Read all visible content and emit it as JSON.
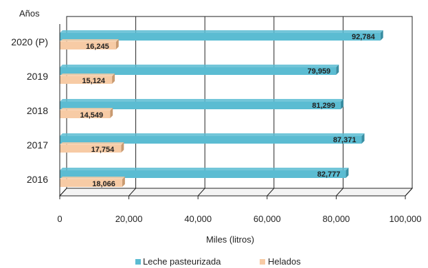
{
  "chart_data": {
    "type": "bar",
    "orientation": "horizontal",
    "categories": [
      "2020 (P)",
      "2019",
      "2018",
      "2017",
      "2016"
    ],
    "series": [
      {
        "name": "Leche pasteurizada",
        "values": [
          92784,
          79959,
          81299,
          87371,
          82777
        ],
        "labels": [
          "92,784",
          "79,959",
          "81,299",
          "87,371",
          "82,777"
        ],
        "color": "#5bbcd2"
      },
      {
        "name": "Helados",
        "values": [
          16245,
          15124,
          14549,
          17754,
          18066
        ],
        "labels": [
          "16,245",
          "15,124",
          "14,549",
          "17,754",
          "18,066"
        ],
        "color": "#f7cba5"
      }
    ],
    "xlabel": "Miles (litros)",
    "ylabel": "Años",
    "xlim": [
      0,
      100000
    ],
    "xticks": [
      0,
      20000,
      40000,
      60000,
      80000,
      100000
    ],
    "xtick_labels": [
      "0",
      "20,000",
      "40,000",
      "60,000",
      "80,000",
      "100,000"
    ],
    "grid": true,
    "legend_position": "bottom"
  }
}
